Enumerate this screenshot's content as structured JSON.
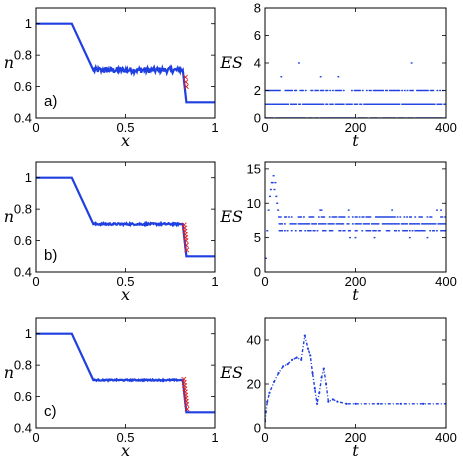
{
  "chart_data": [
    {
      "id": "a-left",
      "type": "line",
      "panel_label": "a)",
      "xlabel": "x",
      "ylabel": "n",
      "xlim": [
        0,
        1
      ],
      "ylim": [
        0.4,
        1.1
      ],
      "xticks": [
        "0",
        "0.5",
        "1"
      ],
      "xtick_values": [
        0,
        0.5,
        1
      ],
      "yticks": [
        "0.4",
        "0.6",
        "0.8",
        "1"
      ],
      "ytick_values": [
        0.4,
        0.6,
        0.8,
        1.0
      ],
      "series": [
        {
          "color": "#1f3fe0",
          "style": "line",
          "x": [
            0,
            0.2,
            0.32,
            0.82,
            0.84,
            1.0
          ],
          "y": [
            1.0,
            1.0,
            0.705,
            0.705,
            0.5,
            0.5
          ],
          "noise": {
            "from": 0.32,
            "to": 0.82,
            "amp": 0.018
          }
        },
        {
          "color": "#e02020",
          "style": "cross",
          "x": [
            0.835,
            0.837,
            0.84
          ],
          "y": [
            0.66,
            0.63,
            0.6
          ]
        }
      ]
    },
    {
      "id": "a-right",
      "type": "scatter",
      "xlabel": "t",
      "ylabel": "ES",
      "xlim": [
        0,
        400
      ],
      "ylim": [
        0,
        8
      ],
      "xticks": [
        "0",
        "200",
        "400"
      ],
      "xtick_values": [
        0,
        200,
        400
      ],
      "yticks": [
        "0",
        "2",
        "4",
        "6",
        "8"
      ],
      "ytick_values": [
        0,
        2,
        4,
        6,
        8
      ],
      "series": [
        {
          "color": "#1f3fe0",
          "style": "dots",
          "levels": [
            {
              "y": 0,
              "density": 0.9
            },
            {
              "y": 1,
              "density": 0.9
            },
            {
              "y": 2,
              "density": 0.65
            },
            {
              "y": 3,
              "density": 0.05
            },
            {
              "y": 4,
              "density": 0.004
            }
          ]
        }
      ]
    },
    {
      "id": "b-left",
      "type": "line",
      "panel_label": "b)",
      "xlabel": "x",
      "ylabel": "n",
      "xlim": [
        0,
        1
      ],
      "ylim": [
        0.4,
        1.1
      ],
      "xticks": [
        "0",
        "0.5",
        "1"
      ],
      "xtick_values": [
        0,
        0.5,
        1
      ],
      "yticks": [
        "0.4",
        "0.6",
        "0.8",
        "1"
      ],
      "ytick_values": [
        0.4,
        0.6,
        0.8,
        1.0
      ],
      "series": [
        {
          "color": "#1f3fe0",
          "style": "line",
          "x": [
            0,
            0.2,
            0.32,
            0.82,
            0.84,
            1.0
          ],
          "y": [
            1.0,
            1.0,
            0.705,
            0.705,
            0.5,
            0.5
          ],
          "noise": {
            "from": 0.32,
            "to": 0.82,
            "amp": 0.006
          }
        },
        {
          "color": "#e02020",
          "style": "cross",
          "x": [
            0.828,
            0.83,
            0.832,
            0.834,
            0.836,
            0.838,
            0.84,
            0.842
          ],
          "y": [
            0.7,
            0.68,
            0.66,
            0.64,
            0.62,
            0.6,
            0.57,
            0.54
          ]
        }
      ]
    },
    {
      "id": "b-right",
      "type": "scatter",
      "xlabel": "t",
      "ylabel": "ES",
      "xlim": [
        0,
        400
      ],
      "ylim": [
        0,
        16
      ],
      "xticks": [
        "0",
        "200",
        "400"
      ],
      "xtick_values": [
        0,
        200,
        400
      ],
      "yticks": [
        "0",
        "5",
        "10",
        "15"
      ],
      "ytick_values": [
        0,
        5,
        10,
        15
      ],
      "series": [
        {
          "color": "#1f3fe0",
          "style": "dots",
          "early": {
            "x": [
              2,
              5,
              8,
              11,
              13,
              15,
              17,
              19,
              21,
              23,
              25,
              27,
              29,
              31
            ],
            "y": [
              2,
              6,
              9,
              11,
              12,
              13,
              13,
              14,
              12,
              13,
              11,
              10,
              9,
              8
            ]
          },
          "levels": [
            {
              "y": 6,
              "density": 0.55
            },
            {
              "y": 7,
              "density": 0.85
            },
            {
              "y": 8,
              "density": 0.6
            },
            {
              "y": 5,
              "density": 0.05
            },
            {
              "y": 9,
              "density": 0.05
            }
          ]
        }
      ]
    },
    {
      "id": "c-left",
      "type": "line",
      "panel_label": "c)",
      "xlabel": "x",
      "ylabel": "n",
      "xlim": [
        0,
        1
      ],
      "ylim": [
        0.4,
        1.1
      ],
      "xticks": [
        "0",
        "0.5",
        "1"
      ],
      "xtick_values": [
        0,
        0.5,
        1
      ],
      "yticks": [
        "0.4",
        "0.6",
        "0.8",
        "1"
      ],
      "ytick_values": [
        0.4,
        0.6,
        0.8,
        1.0
      ],
      "series": [
        {
          "color": "#1f3fe0",
          "style": "line",
          "x": [
            0,
            0.2,
            0.32,
            0.82,
            0.84,
            1.0
          ],
          "y": [
            1.0,
            1.0,
            0.705,
            0.705,
            0.5,
            0.5
          ],
          "noise": {
            "from": 0.32,
            "to": 0.82,
            "amp": 0.004
          }
        },
        {
          "color": "#e02020",
          "style": "cross",
          "x": [
            0.826,
            0.828,
            0.83,
            0.832,
            0.834,
            0.836,
            0.838,
            0.84,
            0.842,
            0.844
          ],
          "y": [
            0.71,
            0.69,
            0.67,
            0.65,
            0.63,
            0.61,
            0.59,
            0.57,
            0.55,
            0.52
          ]
        }
      ]
    },
    {
      "id": "c-right",
      "type": "line",
      "xlabel": "t",
      "ylabel": "ES",
      "xlim": [
        0,
        400
      ],
      "ylim": [
        0,
        50
      ],
      "xticks": [
        "0",
        "200",
        "400"
      ],
      "xtick_values": [
        0,
        200,
        400
      ],
      "yticks": [
        "0",
        "20",
        "40"
      ],
      "ytick_values": [
        0,
        20,
        40
      ],
      "series": [
        {
          "color": "#1f3fe0",
          "style": "dashdot",
          "x": [
            0,
            5,
            10,
            20,
            30,
            40,
            50,
            60,
            70,
            80,
            88,
            95,
            100,
            105,
            110,
            115,
            120,
            125,
            130,
            135,
            140,
            150,
            160,
            180,
            200,
            250,
            300,
            350,
            400
          ],
          "y": [
            3,
            12,
            16,
            21,
            25,
            28,
            29,
            31,
            32,
            31,
            42,
            36,
            33,
            25,
            18,
            11,
            16,
            23,
            27,
            20,
            12,
            13,
            12,
            11,
            11,
            11,
            11,
            11,
            11
          ]
        }
      ]
    }
  ]
}
